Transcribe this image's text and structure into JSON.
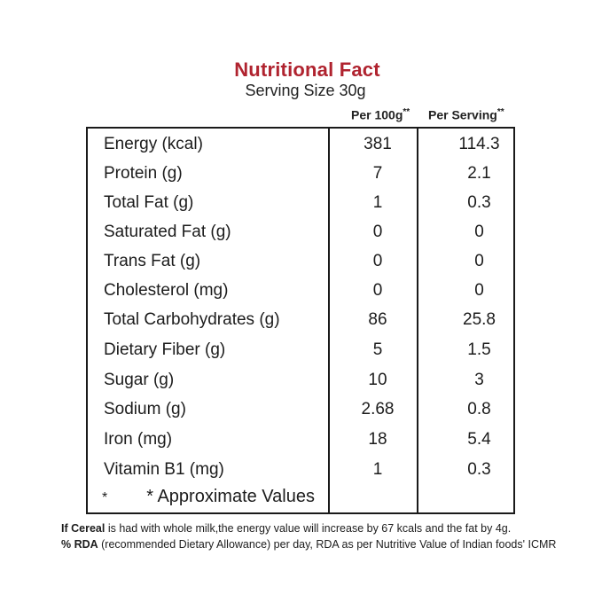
{
  "header": {
    "title": "Nutritional Fact",
    "serving_size": "Serving Size 30g"
  },
  "columns": {
    "per_100g": "Per 100g",
    "per_100g_mark": "**",
    "per_serving": "Per Serving",
    "per_serving_mark": "**"
  },
  "rows": [
    {
      "name": "Energy (kcal)",
      "per_100g": "381",
      "per_serving": "114.3"
    },
    {
      "name": "Protein (g)",
      "per_100g": "7",
      "per_serving": "2.1"
    },
    {
      "name": "Total Fat (g)",
      "per_100g": "1",
      "per_serving": "0.3"
    },
    {
      "name": "Saturated Fat (g)",
      "per_100g": "0",
      "per_serving": "0"
    },
    {
      "name": "Trans Fat (g)",
      "per_100g": "0",
      "per_serving": "0"
    },
    {
      "name": "Cholesterol (mg)",
      "per_100g": "0",
      "per_serving": "0"
    },
    {
      "name": "Total Carbohydrates (g)",
      "per_100g": "86",
      "per_serving": "25.8"
    },
    {
      "name": "Dietary Fiber (g)",
      "per_100g": "5",
      "per_serving": "1.5"
    },
    {
      "name": "Sugar (g)",
      "per_100g": "10",
      "per_serving": "3"
    },
    {
      "name": "Sodium (g)",
      "per_100g": "2.68",
      "per_serving": "0.8"
    },
    {
      "name": "Iron (mg)",
      "per_100g": "18",
      "per_serving": "5.4"
    },
    {
      "name": "Vitamin B1 (mg)",
      "per_100g": "1",
      "per_serving": "0.3"
    }
  ],
  "approx": {
    "marker": "*",
    "text": "* Approximate Values"
  },
  "footnotes": {
    "line1_lead": "If Cereal",
    "line1_rest": " is had with whole milk,the energy value will increase by 67 kcals and the fat by 4g.",
    "line2_lead": "% RDA",
    "line2_rest": " (recommended Dietary Allowance) per day, RDA as per Nutritive Value of Indian foods' ICMR"
  }
}
